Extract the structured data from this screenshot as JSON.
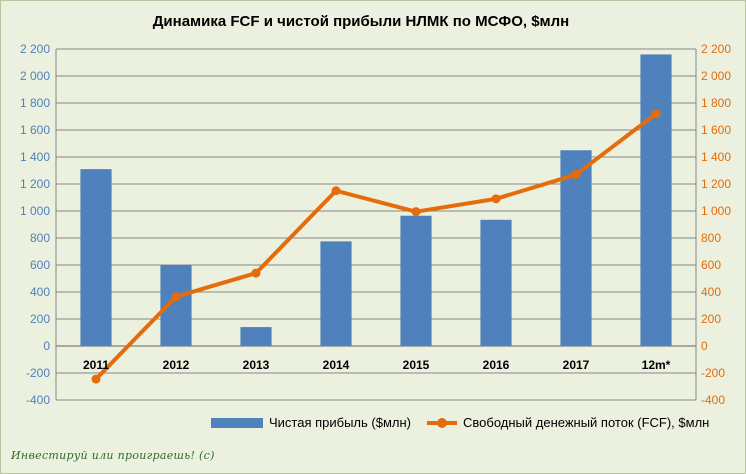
{
  "chart_data": {
    "type": "bar",
    "title": "Динамика FCF и чистой прибыли НЛМК по МСФО, $млн",
    "categories": [
      "2011",
      "2012",
      "2013",
      "2014",
      "2015",
      "2016",
      "2017",
      "12m*"
    ],
    "series": [
      {
        "name": "Чистая прибыль ($млн)",
        "type": "bar",
        "axis": "left",
        "color": "#4f81bd",
        "values": [
          1310,
          600,
          140,
          775,
          965,
          935,
          1450,
          2160
        ]
      },
      {
        "name": "Свободный денежный поток (FCF), $млн",
        "type": "line",
        "axis": "right",
        "color": "#e46c0a",
        "values": [
          -245,
          365,
          540,
          1150,
          995,
          1090,
          1270,
          1720
        ]
      }
    ],
    "ylim": [
      -400,
      2200
    ],
    "y2lim": [
      -400,
      2200
    ],
    "yticks": [
      "-400",
      "-200",
      "0",
      "200",
      "400",
      "600",
      "800",
      "1 000",
      "1 200",
      "1 400",
      "1 600",
      "1 800",
      "2 000",
      "2 200"
    ],
    "y2ticks": [
      "-400",
      "-200",
      "0",
      "200",
      "400",
      "600",
      "800",
      "1 000",
      "1 200",
      "1 400",
      "1 600",
      "1 800",
      "2 000",
      "2 200"
    ],
    "grid": true,
    "legend_position": "bottom"
  },
  "watermark": "Инвестируй или проиграешь! (c)"
}
